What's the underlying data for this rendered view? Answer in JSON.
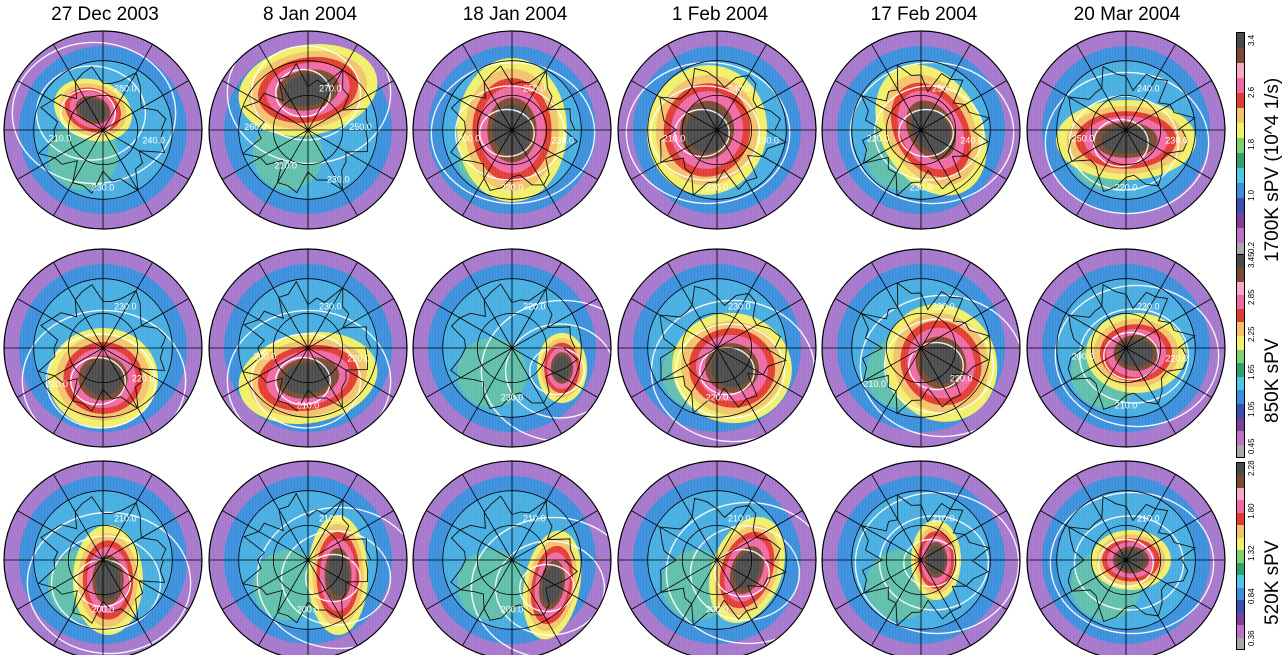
{
  "dates": [
    "27 Dec 2003",
    "8 Jan 2004",
    "18 Jan 2004",
    "1 Feb 2004",
    "17 Feb 2004",
    "20 Mar 2004"
  ],
  "levels": [
    {
      "title": "1700K sPV (10^4 1/s)",
      "ticks": [
        "0.2",
        "1.0",
        "1.8",
        "2.6",
        "3.4"
      ],
      "colors": [
        "#a8a8a8",
        "#c06fc7",
        "#7e3f9a",
        "#3b4fae",
        "#3a8fdc",
        "#4ec6e6",
        "#2ea06a",
        "#7fd26b",
        "#f2ef6a",
        "#f4c26a",
        "#e23b33",
        "#ef6aa4",
        "#f4a9c4",
        "#7a4a32",
        "#4a4a4a"
      ],
      "maps": [
        {
          "contours": [
            "280.0",
            "240.0",
            "230.0",
            "210.0"
          ]
        },
        {
          "contours": [
            "270.0",
            "250.0",
            "230.0",
            "210.0",
            "260.0"
          ]
        },
        {
          "contours": [
            "250.0",
            "230.0",
            "220.0",
            "200.0"
          ]
        },
        {
          "contours": [
            "240.0",
            "230.0",
            "220.0",
            "210.0"
          ]
        },
        {
          "contours": [
            "250.0",
            "240.0",
            "230.0",
            "220.0"
          ]
        },
        {
          "contours": [
            "240.0",
            "230.0",
            "220.0",
            "250.0"
          ]
        }
      ]
    },
    {
      "title": "850K sPV",
      "ticks": [
        "0.45",
        "1.05",
        "1.65",
        "2.25",
        "2.85",
        "3.45"
      ],
      "colors": [
        "#a8a8a8",
        "#c06fc7",
        "#7e3f9a",
        "#3b4fae",
        "#3a8fdc",
        "#4ec6e6",
        "#2ea06a",
        "#7fd26b",
        "#f2ef6a",
        "#f4c26a",
        "#e23b33",
        "#ef6aa4",
        "#f4a9c4",
        "#7a4a32",
        "#4a4a4a"
      ],
      "maps": [
        {
          "contours": [
            "230.0",
            "220.0",
            "210.0"
          ]
        },
        {
          "contours": [
            "230.0",
            "220.0",
            "210.0",
            "200.0"
          ]
        },
        {
          "contours": [
            "220.0",
            "230.0"
          ]
        },
        {
          "contours": [
            "230.0",
            "220.0"
          ]
        },
        {
          "contours": [
            "230.0",
            "220.0",
            "210.0"
          ]
        },
        {
          "contours": [
            "230.0",
            "220.0",
            "210.0",
            "200.0"
          ]
        }
      ]
    },
    {
      "title": "520K sPV",
      "ticks": [
        "0.36",
        "0.84",
        "1.32",
        "1.80",
        "2.28"
      ],
      "colors": [
        "#a8a8a8",
        "#c06fc7",
        "#7e3f9a",
        "#3b4fae",
        "#3a8fdc",
        "#4ec6e6",
        "#2ea06a",
        "#7fd26b",
        "#f2ef6a",
        "#f4c26a",
        "#e23b33",
        "#ef6aa4",
        "#f4a9c4",
        "#7a4a32",
        "#4a4a4a"
      ],
      "maps": [
        {
          "contours": [
            "210.0",
            "200.0"
          ]
        },
        {
          "contours": [
            "210.0",
            "200.0"
          ]
        },
        {
          "contours": [
            "210.0",
            "200.0"
          ]
        },
        {
          "contours": [
            "210.0",
            "200.0"
          ]
        },
        {
          "contours": [
            "210.0"
          ]
        },
        {
          "contours": [
            "210.0"
          ]
        }
      ]
    }
  ]
}
